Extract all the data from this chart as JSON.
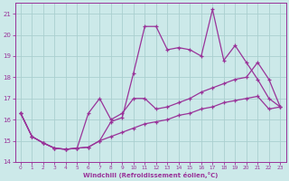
{
  "xlabel": "Windchill (Refroidissement éolien,°C)",
  "background_color": "#cce9e9",
  "grid_color": "#aacfcf",
  "line_color": "#993399",
  "xlim": [
    -0.5,
    23.5
  ],
  "ylim": [
    14,
    21.5
  ],
  "xticks": [
    0,
    1,
    2,
    3,
    4,
    5,
    6,
    7,
    8,
    9,
    10,
    11,
    12,
    13,
    14,
    15,
    16,
    17,
    18,
    19,
    20,
    21,
    22,
    23
  ],
  "yticks": [
    14,
    15,
    16,
    17,
    18,
    19,
    20,
    21
  ],
  "line1_x": [
    0,
    1,
    2,
    3,
    4,
    5,
    6,
    7,
    8,
    9,
    10,
    11,
    12,
    13,
    14,
    15,
    16,
    17,
    18,
    19,
    20,
    21,
    22,
    23
  ],
  "line1_y": [
    16.3,
    15.2,
    14.9,
    14.65,
    14.6,
    14.65,
    16.3,
    17.0,
    16.0,
    16.3,
    17.0,
    17.0,
    16.5,
    16.6,
    16.8,
    17.0,
    17.3,
    17.5,
    17.7,
    17.9,
    18.0,
    18.7,
    17.9,
    16.6
  ],
  "line2_x": [
    0,
    1,
    2,
    3,
    4,
    5,
    6,
    7,
    8,
    9,
    10,
    11,
    12,
    13,
    14,
    15,
    16,
    17,
    18,
    19,
    20,
    21,
    22,
    23
  ],
  "line2_y": [
    16.3,
    15.2,
    14.9,
    14.65,
    14.6,
    14.65,
    14.7,
    15.0,
    15.9,
    16.1,
    18.2,
    20.4,
    20.4,
    19.3,
    19.4,
    19.3,
    19.0,
    21.2,
    18.8,
    19.5,
    18.7,
    17.9,
    17.0,
    16.6
  ],
  "line3_x": [
    0,
    1,
    2,
    3,
    4,
    5,
    6,
    7,
    8,
    9,
    10,
    11,
    12,
    13,
    14,
    15,
    16,
    17,
    18,
    19,
    20,
    21,
    22,
    23
  ],
  "line3_y": [
    16.3,
    15.2,
    14.9,
    14.65,
    14.6,
    14.65,
    14.7,
    15.0,
    15.2,
    15.4,
    15.6,
    15.8,
    15.9,
    16.0,
    16.2,
    16.3,
    16.5,
    16.6,
    16.8,
    16.9,
    17.0,
    17.1,
    16.5,
    16.6
  ]
}
